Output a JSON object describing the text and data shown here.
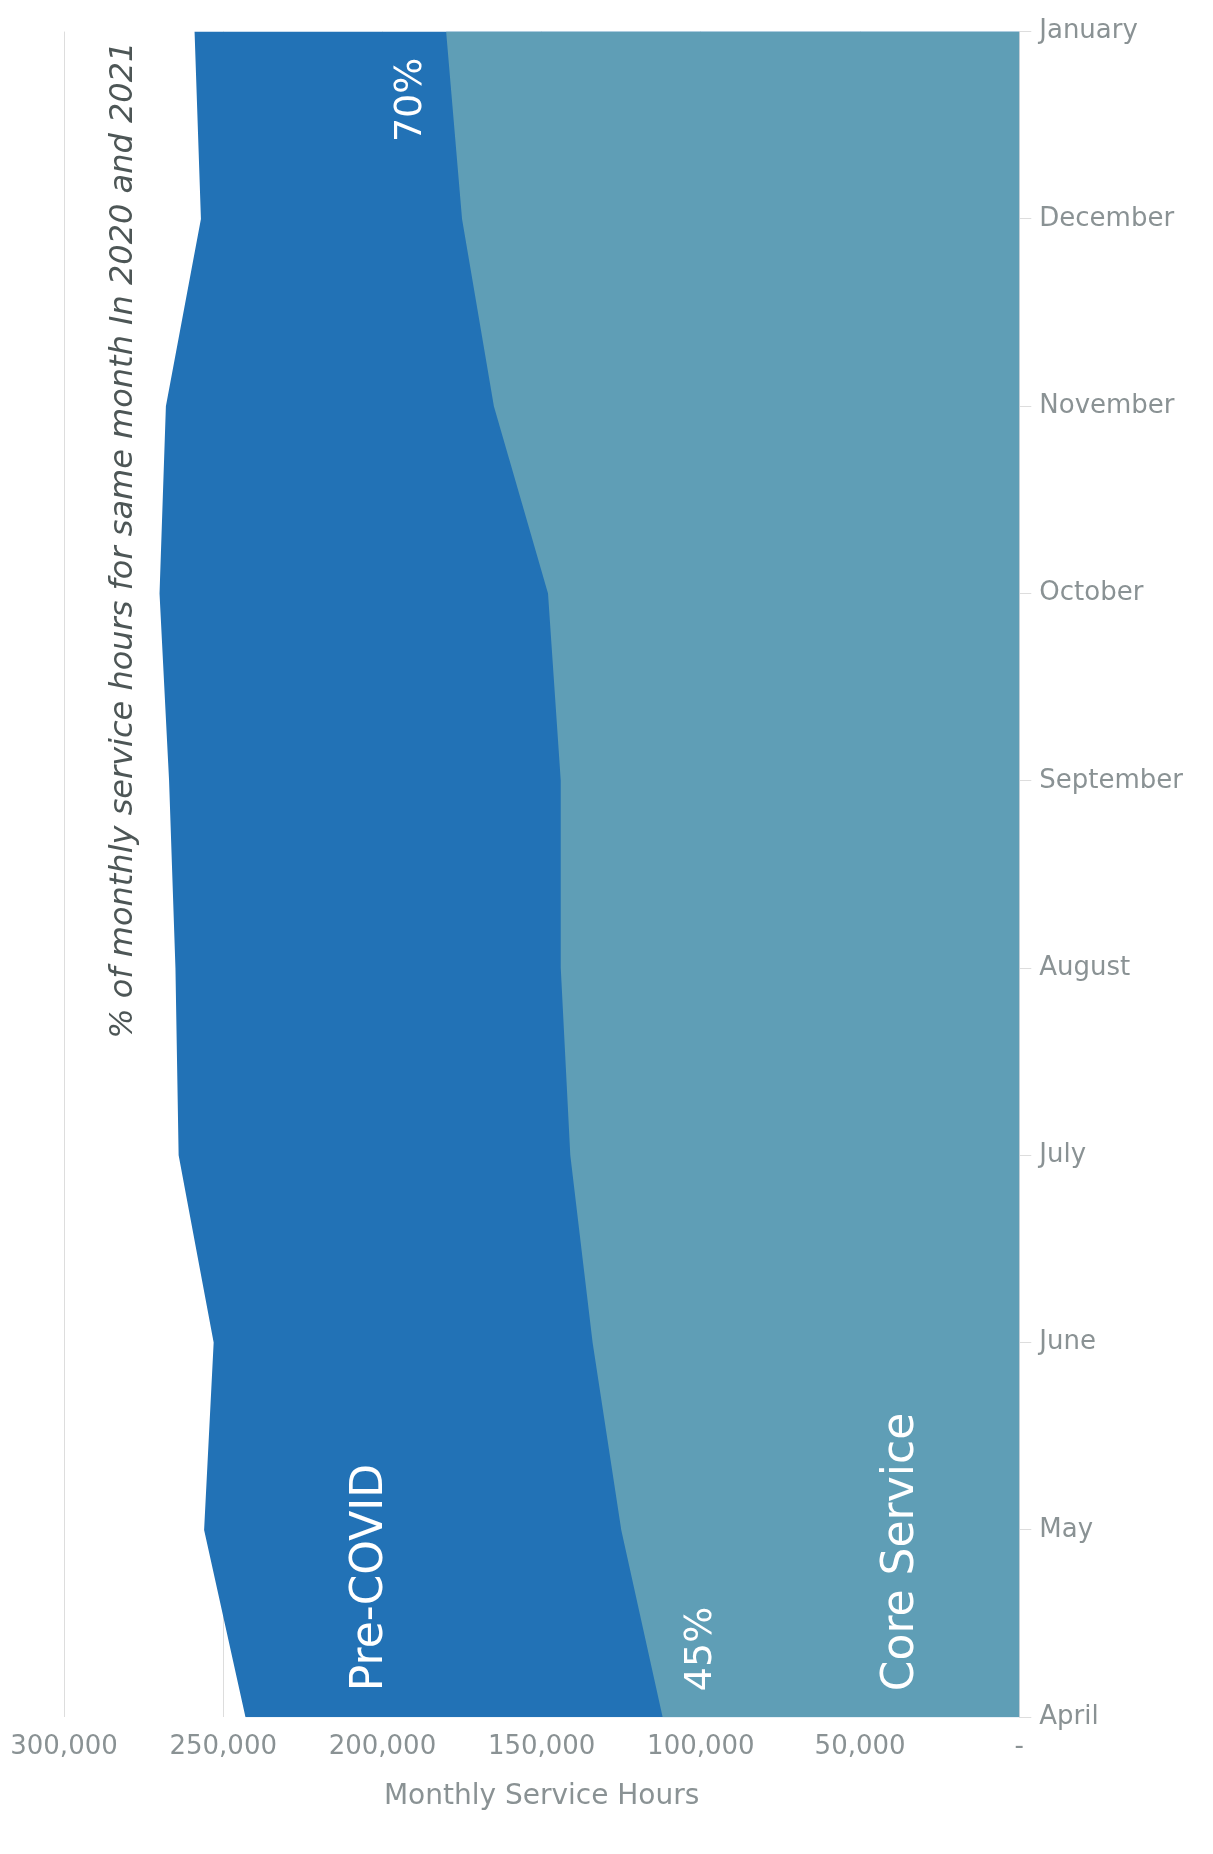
{
  "chart_data": {
    "type": "area",
    "orientation": "horizontal",
    "annotations": [
      "% of monthly service hours for same month In 2020 and 2021",
      {
        "text": "70%",
        "x": 191000,
        "y": "January"
      },
      {
        "text": "45%",
        "x": 100000,
        "y": "April"
      }
    ],
    "xlabel": "Monthly Service Hours",
    "categories": [
      "January",
      "December",
      "November",
      "October",
      "September",
      "August",
      "July",
      "June",
      "May",
      "April"
    ],
    "series": [
      {
        "name": "Pre-COVID",
        "color": "#2272b6",
        "values": [
          259000,
          257000,
          268000,
          270000,
          267000,
          265000,
          264000,
          253000,
          256000,
          243000
        ]
      },
      {
        "name": "Core Service",
        "color": "#5f9eb6",
        "values": [
          180000,
          175000,
          165000,
          148000,
          144000,
          144000,
          141000,
          134000,
          125000,
          112000
        ]
      }
    ],
    "xlim": [
      300000,
      0
    ],
    "xticks": [
      {
        "value": 0,
        "label": "-"
      },
      {
        "value": 50000,
        "label": "50,000"
      },
      {
        "value": 100000,
        "label": "100,000"
      },
      {
        "value": 150000,
        "label": "150,000"
      },
      {
        "value": 200000,
        "label": "200,000"
      },
      {
        "value": 250000,
        "label": "250,000"
      },
      {
        "value": 300000,
        "label": "300,000"
      }
    ],
    "grid": "x",
    "legend": false,
    "marker": "none"
  }
}
